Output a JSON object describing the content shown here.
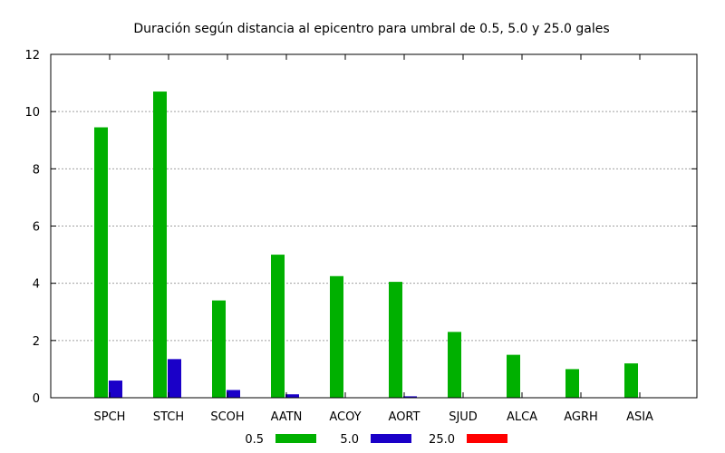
{
  "chart_data": {
    "type": "bar",
    "title": "Duración según distancia al epicentro para umbral de 0.5, 5.0 y 25.0 gales",
    "xlabel": "",
    "ylabel": "",
    "categories": [
      "SPCH",
      "STCH",
      "SCOH",
      "AATN",
      "ACOY",
      "AORT",
      "SJUD",
      "ALCA",
      "AGRH",
      "ASIA"
    ],
    "ylim": [
      0,
      12
    ],
    "yticks": [
      "0",
      "2",
      "4",
      "6",
      "8",
      "10",
      "12"
    ],
    "grid": true,
    "legend_position": "bottom",
    "series": [
      {
        "name": "0.5",
        "color": "#00b000",
        "values": [
          9.45,
          10.7,
          3.4,
          5.0,
          4.25,
          4.05,
          2.3,
          1.5,
          1.0,
          1.2
        ]
      },
      {
        "name": "5.0",
        "color": "#1a00c8",
        "values": [
          0.6,
          1.35,
          0.27,
          0.12,
          0,
          0.05,
          0,
          0,
          0,
          0
        ]
      },
      {
        "name": "25.0",
        "color": "#ff0000",
        "values": [
          0,
          0,
          0,
          0,
          0,
          0,
          0,
          0,
          0,
          0
        ]
      }
    ]
  }
}
